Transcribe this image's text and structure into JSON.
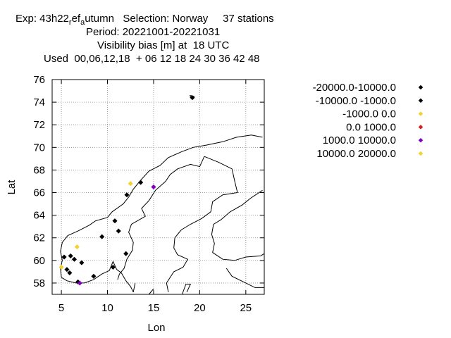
{
  "title": {
    "line1_exp": "Exp: 43h22",
    "line1_sub1": "r",
    "line1_mid": "ef",
    "line1_sub2": "a",
    "line1_rest": "utumn   Selection: Norway     37 stations",
    "line2": "Period: 20221001-20221031",
    "line3": "Visibility bias [m] at  18 UTC",
    "line4": "Used  00,06,12,18  + 06 12 18 24 30 36 42 48"
  },
  "chart_data": {
    "type": "scatter",
    "xlabel": "Lon",
    "ylabel": "Lat",
    "xlim": [
      4,
      27
    ],
    "ylim": [
      57,
      76
    ],
    "xticks": [
      5,
      10,
      15,
      20,
      25
    ],
    "yticks": [
      58,
      60,
      62,
      64,
      66,
      68,
      70,
      72,
      74,
      76
    ],
    "grid": true,
    "legend_position": "right",
    "series": [
      {
        "name": "-20000.0-10000.0",
        "color": "#000000",
        "points": []
      },
      {
        "name": "-10000.0 -1000.0",
        "color": "#000000",
        "points": [
          [
            19.2,
            74.4
          ],
          [
            12.1,
            65.8
          ],
          [
            13.6,
            66.9
          ],
          [
            10.8,
            63.5
          ],
          [
            11.2,
            62.6
          ],
          [
            9.4,
            62.1
          ],
          [
            12.0,
            60.6
          ],
          [
            6.0,
            60.4
          ],
          [
            5.3,
            60.3
          ],
          [
            6.4,
            60.1
          ],
          [
            7.2,
            59.8
          ],
          [
            5.6,
            59.2
          ],
          [
            5.9,
            58.9
          ],
          [
            8.5,
            58.6
          ],
          [
            10.6,
            59.4
          ],
          [
            6.8,
            58.1
          ]
        ]
      },
      {
        "name": "-1000.0 0.0",
        "color": "#f5d130",
        "points": [
          [
            12.5,
            66.8
          ],
          [
            6.7,
            61.2
          ],
          [
            5.0,
            59.4
          ]
        ]
      },
      {
        "name": "0.0 1000.0",
        "color": "#d42020",
        "points": []
      },
      {
        "name": "1000.0 10000.0",
        "color": "#8000c0",
        "points": [
          [
            15.0,
            66.5
          ],
          [
            7.0,
            58.0
          ]
        ]
      },
      {
        "name": "10000.0 20000.0",
        "color": "#f5d130",
        "points": []
      }
    ]
  }
}
